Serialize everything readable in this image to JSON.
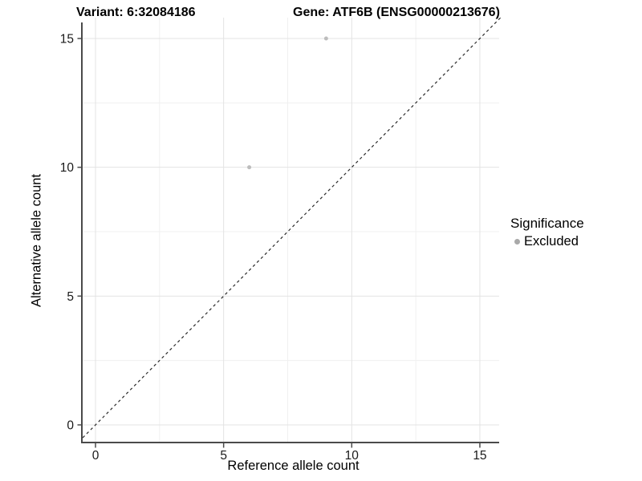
{
  "chart_data": {
    "type": "scatter",
    "title_left": "Variant: 6:32084186",
    "title_right": "Gene: ATF6B (ENSG00000213676)",
    "xlabel": "Reference allele count",
    "ylabel": "Alternative allele count",
    "x_ticks": [
      0,
      5,
      10,
      15
    ],
    "y_ticks": [
      0,
      5,
      10,
      15
    ],
    "x_minor_ticks": [
      2.5,
      7.5,
      12.5
    ],
    "y_minor_ticks": [
      2.5,
      7.5,
      12.5
    ],
    "xlim": [
      -0.5,
      15.85
    ],
    "ylim": [
      -0.65,
      15.75
    ],
    "grid": "major+minor",
    "reference_line": {
      "style": "dashed",
      "slope": 1,
      "intercept": 0,
      "x_range": [
        -0.5,
        15.85
      ],
      "color": "#2a2a2a"
    },
    "series": [
      {
        "name": "Excluded",
        "color": "#bdbdbd",
        "point_radius": 2.5,
        "points": [
          [
            9,
            15
          ],
          [
            6,
            10
          ]
        ]
      }
    ],
    "legend": {
      "title": "Significance",
      "position": "right",
      "items": [
        {
          "label": "Excluded",
          "color": "#a9a9a9"
        }
      ]
    },
    "colors": {
      "background": "#ffffff",
      "grid_major": "#e3e3e3",
      "grid_minor": "#f0f0f0",
      "axis": "#4a4a4a",
      "tick_label": "#1a1a1a"
    }
  }
}
